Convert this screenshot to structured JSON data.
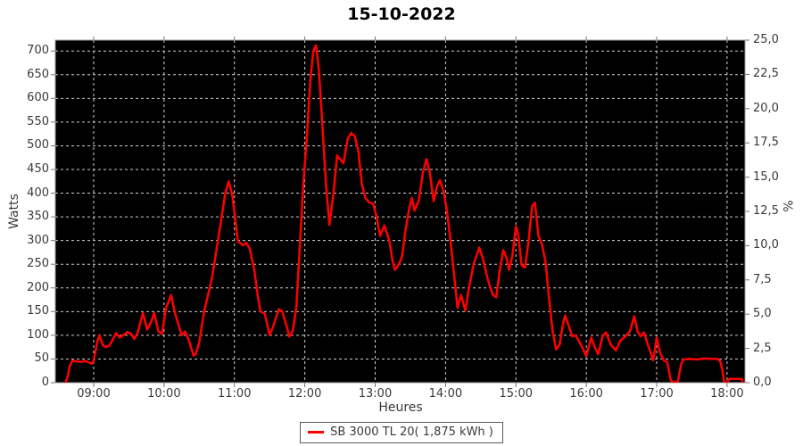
{
  "title": "15-10-2022",
  "chart_data": {
    "type": "line",
    "title": "15-10-2022",
    "xlabel": "Heures",
    "ylabel_left": "Watts",
    "ylabel_right": "%",
    "plot_background": "#000000",
    "grid": {
      "visible": true,
      "style": "dashed",
      "color": "#cfcfcf"
    },
    "legend_position": "bottom-center",
    "xlim": [
      8.455,
      18.255
    ],
    "ylim_left": [
      0,
      723
    ],
    "ylim_right": [
      0,
      25
    ],
    "x_ticks": [
      {
        "label": "09:00",
        "value": 9
      },
      {
        "label": "10:00",
        "value": 10
      },
      {
        "label": "11:00",
        "value": 11
      },
      {
        "label": "12:00",
        "value": 12
      },
      {
        "label": "13:00",
        "value": 13
      },
      {
        "label": "14:00",
        "value": 14
      },
      {
        "label": "15:00",
        "value": 15
      },
      {
        "label": "16:00",
        "value": 16
      },
      {
        "label": "17:00",
        "value": 17
      },
      {
        "label": "18:00",
        "value": 18
      }
    ],
    "y_left_ticks": [
      0,
      50,
      100,
      150,
      200,
      250,
      300,
      350,
      400,
      450,
      500,
      550,
      600,
      650,
      700
    ],
    "y_right_ticks": [
      {
        "label": "0,0",
        "value": 0
      },
      {
        "label": "2,5",
        "value": 2.5
      },
      {
        "label": "5,0",
        "value": 5
      },
      {
        "label": "7,5",
        "value": 7.5
      },
      {
        "label": "10,0",
        "value": 10
      },
      {
        "label": "12,5",
        "value": 12.5
      },
      {
        "label": "15,0",
        "value": 15
      },
      {
        "label": "17,5",
        "value": 17.5
      },
      {
        "label": "20,0",
        "value": 20
      },
      {
        "label": "22,5",
        "value": 22.5
      },
      {
        "label": "25,0",
        "value": 25
      }
    ],
    "series": [
      {
        "name": "SB 3000 TL 20( 1,875 kWh )",
        "color": "#ff0000",
        "points": [
          [
            8.6,
            0
          ],
          [
            8.63,
            12
          ],
          [
            8.66,
            35
          ],
          [
            8.7,
            47
          ],
          [
            8.75,
            45
          ],
          [
            8.82,
            44
          ],
          [
            8.88,
            46
          ],
          [
            8.93,
            43
          ],
          [
            8.97,
            40
          ],
          [
            9.0,
            46
          ],
          [
            9.05,
            85
          ],
          [
            9.08,
            100
          ],
          [
            9.13,
            80
          ],
          [
            9.17,
            75
          ],
          [
            9.22,
            78
          ],
          [
            9.27,
            90
          ],
          [
            9.32,
            105
          ],
          [
            9.37,
            95
          ],
          [
            9.42,
            100
          ],
          [
            9.48,
            107
          ],
          [
            9.53,
            103
          ],
          [
            9.58,
            92
          ],
          [
            9.63,
            108
          ],
          [
            9.7,
            147
          ],
          [
            9.76,
            112
          ],
          [
            9.82,
            130
          ],
          [
            9.86,
            147
          ],
          [
            9.92,
            108
          ],
          [
            9.97,
            103
          ],
          [
            10.03,
            158
          ],
          [
            10.1,
            185
          ],
          [
            10.15,
            150
          ],
          [
            10.22,
            115
          ],
          [
            10.25,
            100
          ],
          [
            10.3,
            108
          ],
          [
            10.35,
            90
          ],
          [
            10.42,
            57
          ],
          [
            10.45,
            60
          ],
          [
            10.5,
            85
          ],
          [
            10.57,
            150
          ],
          [
            10.68,
            220
          ],
          [
            10.78,
            313
          ],
          [
            10.87,
            400
          ],
          [
            10.92,
            425
          ],
          [
            10.97,
            395
          ],
          [
            11.02,
            335
          ],
          [
            11.05,
            298
          ],
          [
            11.12,
            290
          ],
          [
            11.17,
            295
          ],
          [
            11.22,
            282
          ],
          [
            11.28,
            240
          ],
          [
            11.33,
            185
          ],
          [
            11.37,
            150
          ],
          [
            11.43,
            146
          ],
          [
            11.5,
            100
          ],
          [
            11.55,
            118
          ],
          [
            11.63,
            155
          ],
          [
            11.68,
            150
          ],
          [
            11.75,
            115
          ],
          [
            11.78,
            97
          ],
          [
            11.83,
            110
          ],
          [
            11.88,
            160
          ],
          [
            11.93,
            290
          ],
          [
            11.98,
            420
          ],
          [
            12.03,
            520
          ],
          [
            12.08,
            640
          ],
          [
            12.12,
            700
          ],
          [
            12.16,
            712
          ],
          [
            12.2,
            660
          ],
          [
            12.25,
            545
          ],
          [
            12.3,
            420
          ],
          [
            12.35,
            333
          ],
          [
            12.4,
            390
          ],
          [
            12.46,
            480
          ],
          [
            12.51,
            470
          ],
          [
            12.55,
            463
          ],
          [
            12.61,
            515
          ],
          [
            12.66,
            527
          ],
          [
            12.71,
            520
          ],
          [
            12.76,
            490
          ],
          [
            12.81,
            420
          ],
          [
            12.86,
            390
          ],
          [
            12.92,
            380
          ],
          [
            12.97,
            378
          ],
          [
            13.02,
            350
          ],
          [
            13.07,
            310
          ],
          [
            13.13,
            332
          ],
          [
            13.2,
            300
          ],
          [
            13.25,
            255
          ],
          [
            13.28,
            238
          ],
          [
            13.33,
            248
          ],
          [
            13.38,
            265
          ],
          [
            13.43,
            320
          ],
          [
            13.48,
            365
          ],
          [
            13.52,
            390
          ],
          [
            13.56,
            363
          ],
          [
            13.62,
            385
          ],
          [
            13.68,
            445
          ],
          [
            13.73,
            472
          ],
          [
            13.78,
            440
          ],
          [
            13.83,
            383
          ],
          [
            13.88,
            415
          ],
          [
            13.92,
            427
          ],
          [
            13.97,
            405
          ],
          [
            14.02,
            362
          ],
          [
            14.07,
            300
          ],
          [
            14.12,
            230
          ],
          [
            14.17,
            158
          ],
          [
            14.22,
            185
          ],
          [
            14.28,
            152
          ],
          [
            14.33,
            198
          ],
          [
            14.4,
            250
          ],
          [
            14.48,
            285
          ],
          [
            14.53,
            262
          ],
          [
            14.6,
            218
          ],
          [
            14.67,
            186
          ],
          [
            14.72,
            180
          ],
          [
            14.77,
            238
          ],
          [
            14.82,
            280
          ],
          [
            14.87,
            262
          ],
          [
            14.9,
            238
          ],
          [
            14.95,
            268
          ],
          [
            15.0,
            330
          ],
          [
            15.03,
            315
          ],
          [
            15.08,
            248
          ],
          [
            15.13,
            243
          ],
          [
            15.18,
            300
          ],
          [
            15.23,
            372
          ],
          [
            15.27,
            380
          ],
          [
            15.32,
            310
          ],
          [
            15.37,
            292
          ],
          [
            15.42,
            255
          ],
          [
            15.47,
            180
          ],
          [
            15.52,
            110
          ],
          [
            15.57,
            70
          ],
          [
            15.62,
            80
          ],
          [
            15.67,
            125
          ],
          [
            15.7,
            142
          ],
          [
            15.75,
            120
          ],
          [
            15.8,
            98
          ],
          [
            15.85,
            100
          ],
          [
            15.93,
            78
          ],
          [
            16.0,
            56
          ],
          [
            16.07,
            95
          ],
          [
            16.12,
            75
          ],
          [
            16.17,
            60
          ],
          [
            16.23,
            98
          ],
          [
            16.28,
            106
          ],
          [
            16.35,
            80
          ],
          [
            16.42,
            68
          ],
          [
            16.48,
            88
          ],
          [
            16.55,
            97
          ],
          [
            16.62,
            108
          ],
          [
            16.68,
            140
          ],
          [
            16.73,
            108
          ],
          [
            16.77,
            98
          ],
          [
            16.82,
            106
          ],
          [
            16.88,
            78
          ],
          [
            16.95,
            47
          ],
          [
            17.0,
            95
          ],
          [
            17.05,
            62
          ],
          [
            17.1,
            47
          ],
          [
            17.15,
            44
          ],
          [
            17.2,
            5
          ],
          [
            17.25,
            0
          ],
          [
            17.3,
            2
          ],
          [
            17.35,
            40
          ],
          [
            17.38,
            49
          ],
          [
            17.47,
            50
          ],
          [
            17.57,
            49
          ],
          [
            17.67,
            51
          ],
          [
            17.77,
            50
          ],
          [
            17.87,
            50
          ],
          [
            17.9,
            46
          ],
          [
            17.93,
            30
          ],
          [
            17.96,
            0
          ],
          [
            18.0,
            0
          ],
          [
            18.03,
            8
          ],
          [
            18.21,
            8
          ],
          [
            18.22,
            0
          ]
        ]
      }
    ]
  },
  "legend": {
    "label": "SB 3000 TL 20( 1,875 kWh )"
  }
}
